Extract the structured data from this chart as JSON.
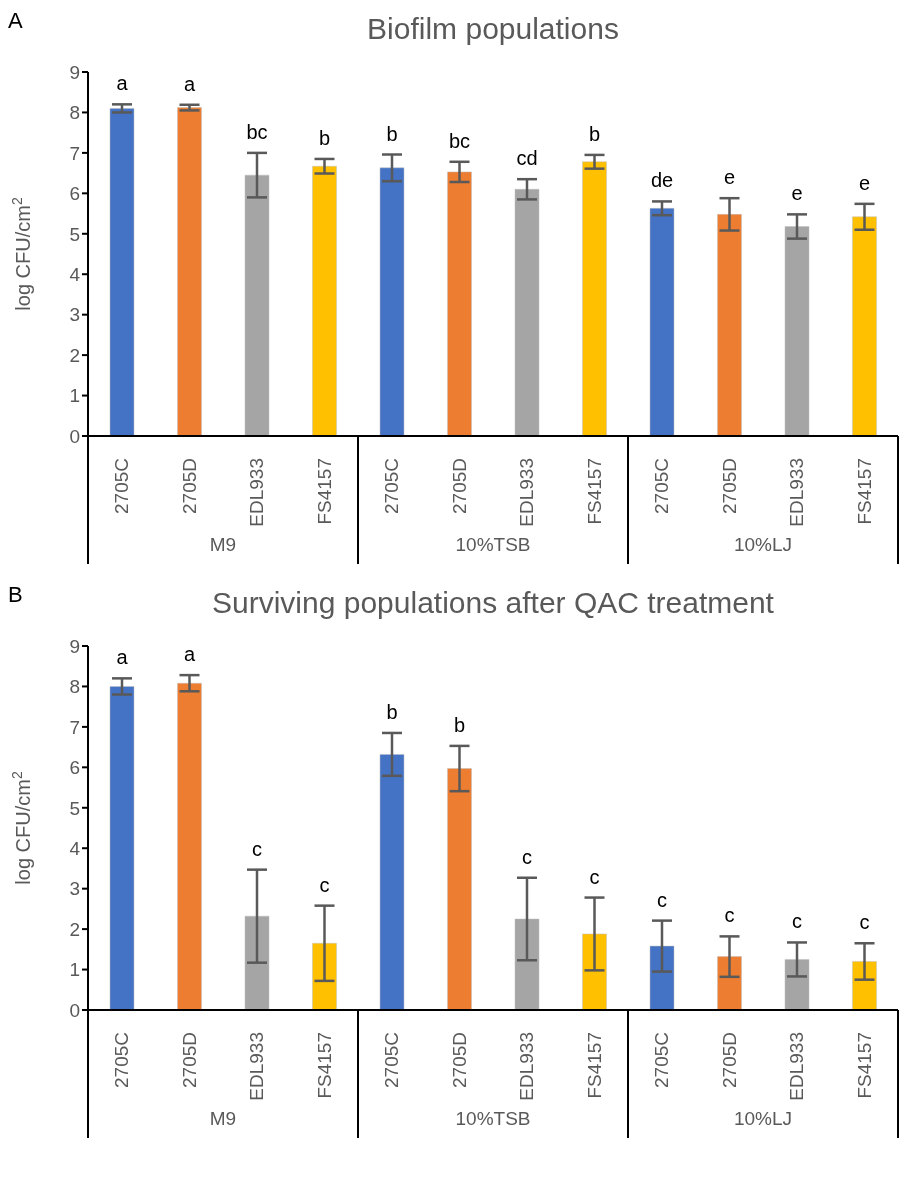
{
  "chart_data": [
    {
      "type": "bar",
      "title": "Biofilm populations",
      "ylabel": "log CFU/cm$^{2}$",
      "categories": [
        "2705C",
        "2705D",
        "EDL933",
        "FS4157",
        "2705C",
        "2705D",
        "EDL933",
        "FS4157",
        "2705C",
        "2705D",
        "EDL933",
        "FS4157"
      ],
      "values": [
        8.1,
        8.12,
        6.45,
        6.67,
        6.63,
        6.53,
        6.1,
        6.78,
        5.63,
        5.48,
        5.18,
        5.42
      ],
      "errors": [
        0.1,
        0.07,
        0.55,
        0.18,
        0.33,
        0.25,
        0.25,
        0.17,
        0.17,
        0.4,
        0.3,
        0.32
      ],
      "colors": [
        "#4472c4",
        "#ed7d31",
        "#a5a5a5",
        "#ffc000",
        "#4472c4",
        "#ed7d31",
        "#a5a5a5",
        "#ffc000",
        "#4472c4",
        "#ed7d31",
        "#a5a5a5",
        "#ffc000"
      ],
      "value_labels": [
        "a",
        "a",
        "bc",
        "b",
        "b",
        "bc",
        "cd",
        "b",
        "de",
        "e",
        "e",
        "e"
      ],
      "annotations": [
        "A",
        "M9",
        "10%TSB",
        "10%LJ"
      ],
      "ylim": [
        0,
        9
      ],
      "yticks": [
        0,
        1,
        2,
        3,
        4,
        5,
        6,
        7,
        8,
        9
      ],
      "grid": false,
      "legend": false
    },
    {
      "type": "bar",
      "title": "Surviving populations after QAC treatment",
      "ylabel": "log CFU/cm$^{2}$",
      "categories": [
        "2705C",
        "2705D",
        "EDL933",
        "FS4157",
        "2705C",
        "2705D",
        "EDL933",
        "FS4157",
        "2705C",
        "2705D",
        "EDL933",
        "FS4157"
      ],
      "values": [
        8.0,
        8.08,
        2.32,
        1.65,
        6.32,
        5.97,
        2.25,
        1.88,
        1.58,
        1.32,
        1.25,
        1.2
      ],
      "errors": [
        0.2,
        0.2,
        1.15,
        0.93,
        0.53,
        0.56,
        1.02,
        0.9,
        0.63,
        0.5,
        0.42,
        0.45
      ],
      "colors": [
        "#4472c4",
        "#ed7d31",
        "#a5a5a5",
        "#ffc000",
        "#4472c4",
        "#ed7d31",
        "#a5a5a5",
        "#ffc000",
        "#4472c4",
        "#ed7d31",
        "#a5a5a5",
        "#ffc000"
      ],
      "value_labels": [
        "a",
        "a",
        "c",
        "c",
        "b",
        "b",
        "c",
        "c",
        "c",
        "c",
        "c",
        "c"
      ],
      "annotations": [
        "B",
        "M9",
        "10%TSB",
        "10%LJ"
      ],
      "ylim": [
        0,
        9
      ],
      "yticks": [
        0,
        1,
        2,
        3,
        4,
        5,
        6,
        7,
        8,
        9
      ],
      "grid": false,
      "legend": false
    }
  ]
}
